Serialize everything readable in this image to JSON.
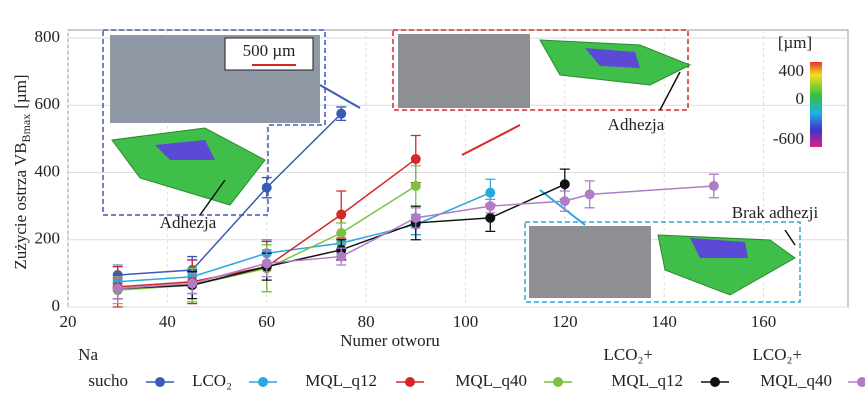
{
  "chart_data": {
    "type": "line",
    "xlabel": "Numer otworu",
    "ylabel": {
      "main": "Zużycie ostrza VB",
      "sub": "Bmax",
      "unit": "[µm]"
    },
    "xlim": [
      20,
      177
    ],
    "xticks": [
      20,
      40,
      60,
      80,
      100,
      120,
      140,
      160
    ],
    "ylim": [
      0,
      800
    ],
    "yticks": [
      0,
      200,
      400,
      600,
      800
    ],
    "grid": true,
    "series": [
      {
        "name": "Na sucho",
        "color": "#3a5bb5",
        "x": [
          30,
          45,
          60,
          75
        ],
        "values": [
          95,
          110,
          355,
          575
        ],
        "errors": [
          25,
          40,
          30,
          20
        ]
      },
      {
        "name": "LCO₂",
        "color": "#29a8e0",
        "x": [
          30,
          45,
          60,
          75,
          90,
          105
        ],
        "values": [
          75,
          90,
          160,
          190,
          245,
          340
        ],
        "errors": [
          50,
          50,
          40,
          30,
          30,
          40
        ]
      },
      {
        "name": "MQL_q12",
        "color": "#d62728",
        "x": [
          30,
          45,
          60,
          75,
          90
        ],
        "values": [
          60,
          75,
          120,
          275,
          440
        ],
        "errors": [
          60,
          65,
          75,
          70,
          70
        ]
      },
      {
        "name": "MQL_q40",
        "color": "#7cc242",
        "x": [
          30,
          45,
          60,
          75,
          90
        ],
        "values": [
          50,
          65,
          115,
          220,
          360
        ],
        "errors": [
          40,
          50,
          70,
          30,
          60
        ]
      },
      {
        "name": "LCO₂+ MQL_q12",
        "color": "#111111",
        "x": [
          30,
          45,
          60,
          75,
          90,
          105,
          120
        ],
        "values": [
          55,
          65,
          120,
          170,
          250,
          265,
          365
        ],
        "errors": [
          30,
          40,
          40,
          30,
          50,
          40,
          45
        ]
      },
      {
        "name": "LCO₂+ MQL_q40",
        "color": "#b07cc6",
        "x": [
          30,
          45,
          60,
          75,
          90,
          105,
          120,
          125,
          150
        ],
        "values": [
          55,
          70,
          130,
          150,
          265,
          300,
          315,
          335,
          360
        ],
        "errors": [
          30,
          30,
          40,
          25,
          30,
          20,
          30,
          40,
          35
        ]
      }
    ],
    "annotations": [
      "500 µm",
      "Adhezja",
      "Adhezja",
      "Brak adhezji"
    ],
    "colorbar": {
      "label": "[µm]",
      "ticks": [
        400,
        0,
        -600
      ]
    }
  }
}
